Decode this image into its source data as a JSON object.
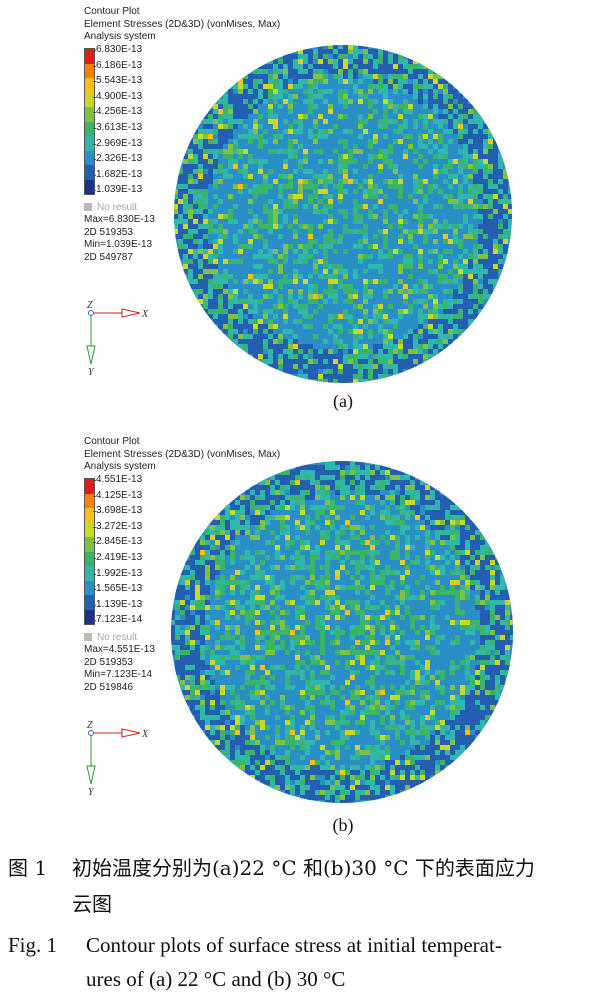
{
  "panels": [
    {
      "legend": {
        "title": "Contour Plot",
        "subtitle": "Element Stresses (2D&3D) (vonMises, Max)",
        "system": "Analysis system",
        "ticks": [
          "6.830E-13",
          "6.186E-13",
          "5.543E-13",
          "4.900E-13",
          "4.256E-13",
          "3.613E-13",
          "2.969E-13",
          "2.326E-13",
          "1.682E-13",
          "1.039E-13"
        ],
        "no_result": "No result",
        "max": "Max=6.830E-13",
        "max_elem": "2D 519353",
        "min": "Min=1.039E-13",
        "min_elem": "2D 549787"
      },
      "triad": {
        "z": "Z",
        "x": "X",
        "y": "Y"
      },
      "label": "(a)"
    },
    {
      "legend": {
        "title": "Contour Plot",
        "subtitle": "Element Stresses (2D&3D) (vonMises, Max)",
        "system": "Analysis system",
        "ticks": [
          "4.551E-13",
          "4.125E-13",
          "3.698E-13",
          "3.272E-13",
          "2.845E-13",
          "2.419E-13",
          "1.992E-13",
          "1.565E-13",
          "1.139E-13",
          "7.123E-14"
        ],
        "no_result": "No result",
        "max": "Max=4.551E-13",
        "max_elem": "2D 519353",
        "min": "Min=7.123E-14",
        "min_elem": "2D 519846"
      },
      "triad": {
        "z": "Z",
        "x": "X",
        "y": "Y"
      },
      "label": "(b)"
    }
  ],
  "colorbar_colors": [
    "#e31a1c",
    "#ff7f00",
    "#f2c418",
    "#c9d823",
    "#7fc241",
    "#39b46a",
    "#2fb8a9",
    "#2a8fc7",
    "#245eb0",
    "#1f2f8c"
  ],
  "caption": {
    "zh_num": "图 1",
    "zh_line1": "初始温度分别为(a)22 °C 和(b)30 °C 下的表面应力",
    "zh_line2": "云图",
    "en_num": "Fig. 1",
    "en_line1": "Contour plots of surface stress at initial temperat-",
    "en_line2": "ures of (a) 22 °C and (b) 30 °C"
  }
}
